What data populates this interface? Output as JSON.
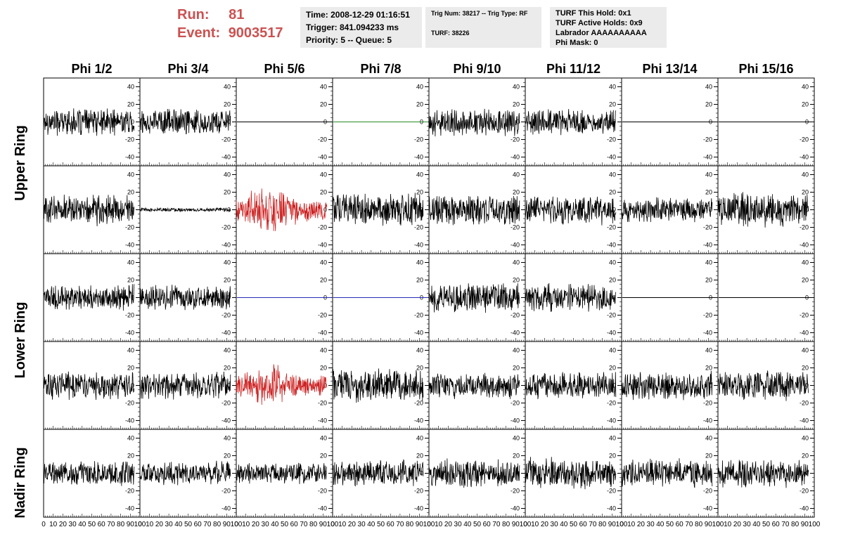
{
  "header": {
    "run_label": "Run:",
    "run_value": "81",
    "event_label": "Event:",
    "event_value": "9003517",
    "accent_color": "#cc5151"
  },
  "info_box_1": {
    "time": "Time: 2008-12-29 01:16:51",
    "trigger": "Trigger: 841.094233 ms",
    "priority": "Priority: 5 -- Queue: 5"
  },
  "info_box_2": {
    "trig": "Trig Num: 38217 -- Trig Type: RF",
    "turf": "TURF: 38226"
  },
  "info_box_3": {
    "this_hold": "TURF This Hold: 0x1",
    "active_holds": "TURF Active Holds: 0x9",
    "labrador": "Labrador AAAAAAAAAA",
    "phi_mask": "Phi Mask: 0"
  },
  "columns": [
    "Phi 1/2",
    "Phi 3/4",
    "Phi 5/6",
    "Phi 7/8",
    "Phi 9/10",
    "Phi 11/12",
    "Phi 13/14",
    "Phi 15/16"
  ],
  "ring_labels": [
    "Upper Ring",
    "Lower Ring",
    "Nadir Ring"
  ],
  "chart_data": {
    "type": "line",
    "panel_grid": {
      "rows": 5,
      "cols": 8
    },
    "xlim": [
      0,
      100
    ],
    "ylim": [
      -50,
      50
    ],
    "x_ticks": [
      0,
      10,
      20,
      30,
      40,
      50,
      60,
      70,
      80,
      90,
      100
    ],
    "x_tick_labels": [
      "0",
      "10",
      "20",
      "30",
      "40",
      "50",
      "60",
      "70",
      "80",
      "90",
      "100"
    ],
    "y_ticks": [
      -40,
      -20,
      0,
      20,
      40
    ],
    "y_tick_labels": [
      "-40",
      "-20",
      "0",
      "20",
      "40"
    ],
    "colors": {
      "default": "#000000",
      "highlight": "#cc2222",
      "green": "#2a8a2a",
      "blue": "#2a2ab8"
    },
    "samples_per_trace": 260,
    "x_end": 94,
    "panels": [
      {
        "row": 0,
        "col": 0,
        "amp": 14,
        "color": "default",
        "flat": false
      },
      {
        "row": 0,
        "col": 1,
        "amp": 14,
        "color": "default",
        "flat": false
      },
      {
        "row": 0,
        "col": 2,
        "amp": 0,
        "color": "default",
        "flat": true
      },
      {
        "row": 0,
        "col": 3,
        "amp": 0,
        "color": "green",
        "flat": true
      },
      {
        "row": 0,
        "col": 4,
        "amp": 15,
        "color": "default",
        "flat": false
      },
      {
        "row": 0,
        "col": 5,
        "amp": 14,
        "color": "default",
        "flat": false
      },
      {
        "row": 0,
        "col": 6,
        "amp": 0,
        "color": "default",
        "flat": true
      },
      {
        "row": 0,
        "col": 7,
        "amp": 0,
        "color": "default",
        "flat": true
      },
      {
        "row": 1,
        "col": 0,
        "amp": 16,
        "color": "default",
        "flat": false
      },
      {
        "row": 1,
        "col": 1,
        "amp": 2,
        "color": "default",
        "flat": false
      },
      {
        "row": 1,
        "col": 2,
        "amp": 22,
        "color": "highlight",
        "flat": false
      },
      {
        "row": 1,
        "col": 3,
        "amp": 17,
        "color": "default",
        "flat": false
      },
      {
        "row": 1,
        "col": 4,
        "amp": 16,
        "color": "default",
        "flat": false
      },
      {
        "row": 1,
        "col": 5,
        "amp": 15,
        "color": "default",
        "flat": false
      },
      {
        "row": 1,
        "col": 6,
        "amp": 13,
        "color": "default",
        "flat": false
      },
      {
        "row": 1,
        "col": 7,
        "amp": 18,
        "color": "default",
        "flat": false
      },
      {
        "row": 2,
        "col": 0,
        "amp": 13,
        "color": "default",
        "flat": false
      },
      {
        "row": 2,
        "col": 1,
        "amp": 13,
        "color": "default",
        "flat": false
      },
      {
        "row": 2,
        "col": 2,
        "amp": 0,
        "color": "blue",
        "flat": true
      },
      {
        "row": 2,
        "col": 3,
        "amp": 0,
        "color": "blue",
        "flat": true
      },
      {
        "row": 2,
        "col": 4,
        "amp": 15,
        "color": "default",
        "flat": false
      },
      {
        "row": 2,
        "col": 5,
        "amp": 15,
        "color": "default",
        "flat": false
      },
      {
        "row": 2,
        "col": 6,
        "amp": 0,
        "color": "default",
        "flat": true
      },
      {
        "row": 2,
        "col": 7,
        "amp": 0,
        "color": "default",
        "flat": true
      },
      {
        "row": 3,
        "col": 0,
        "amp": 15,
        "color": "default",
        "flat": false
      },
      {
        "row": 3,
        "col": 1,
        "amp": 14,
        "color": "default",
        "flat": false
      },
      {
        "row": 3,
        "col": 2,
        "amp": 18,
        "color": "highlight",
        "flat": false
      },
      {
        "row": 3,
        "col": 3,
        "amp": 17,
        "color": "default",
        "flat": false
      },
      {
        "row": 3,
        "col": 4,
        "amp": 14,
        "color": "default",
        "flat": false
      },
      {
        "row": 3,
        "col": 5,
        "amp": 14,
        "color": "default",
        "flat": false
      },
      {
        "row": 3,
        "col": 6,
        "amp": 15,
        "color": "default",
        "flat": false
      },
      {
        "row": 3,
        "col": 7,
        "amp": 15,
        "color": "default",
        "flat": false
      },
      {
        "row": 4,
        "col": 0,
        "amp": 13,
        "color": "default",
        "flat": false
      },
      {
        "row": 4,
        "col": 1,
        "amp": 12,
        "color": "default",
        "flat": false
      },
      {
        "row": 4,
        "col": 2,
        "amp": 11,
        "color": "default",
        "flat": false
      },
      {
        "row": 4,
        "col": 3,
        "amp": 14,
        "color": "default",
        "flat": false
      },
      {
        "row": 4,
        "col": 4,
        "amp": 15,
        "color": "default",
        "flat": false
      },
      {
        "row": 4,
        "col": 5,
        "amp": 16,
        "color": "default",
        "flat": false
      },
      {
        "row": 4,
        "col": 6,
        "amp": 15,
        "color": "default",
        "flat": false
      },
      {
        "row": 4,
        "col": 7,
        "amp": 15,
        "color": "default",
        "flat": false
      }
    ]
  }
}
